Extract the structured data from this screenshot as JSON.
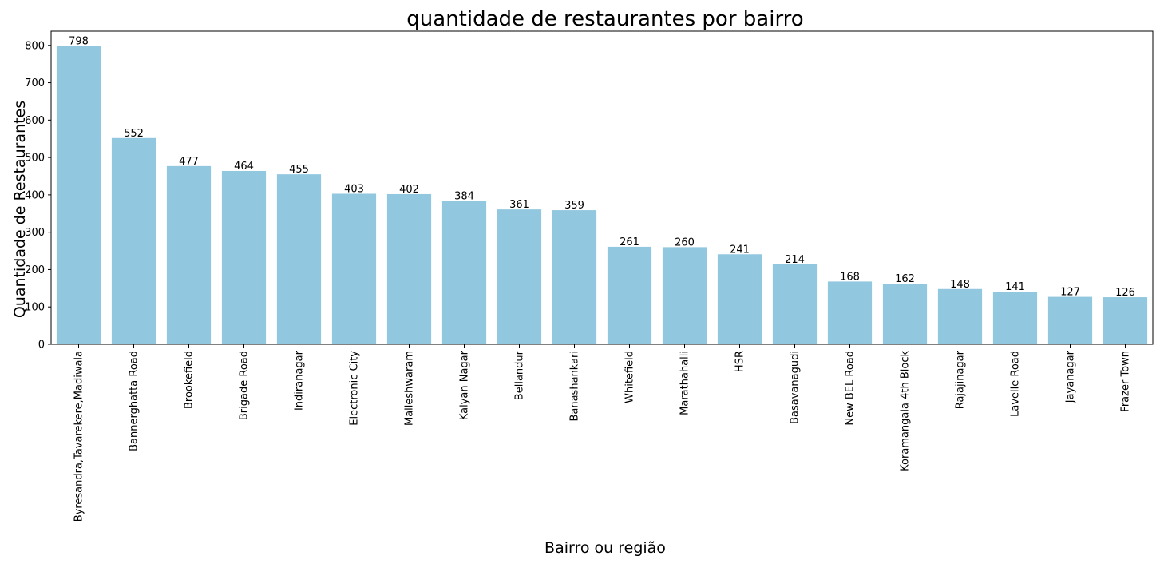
{
  "chart_data": {
    "type": "bar",
    "title": "quantidade de restaurantes por bairro",
    "xlabel": "Bairro ou região",
    "ylabel": "Quantidade de Restaurantes",
    "ylim": [
      0,
      838
    ],
    "yticks": [
      0,
      100,
      200,
      300,
      400,
      500,
      600,
      700,
      800
    ],
    "grid": false,
    "bar_color": "#92C8DF",
    "categories": [
      "Byresandra,Tavarekere,Madiwala",
      "Bannerghatta Road",
      "Brookefield",
      "Brigade Road",
      "Indiranagar",
      "Electronic City",
      "Malleshwaram",
      "Kalyan Nagar",
      "Bellandur",
      "Banashankari",
      "Whitefield",
      "Marathahalli",
      "HSR",
      "Basavanagudi",
      "New BEL Road",
      "Koramangala 4th Block",
      "Rajajinagar",
      "Lavelle Road",
      "Jayanagar",
      "Frazer Town"
    ],
    "values": [
      798,
      552,
      477,
      464,
      455,
      403,
      402,
      384,
      361,
      359,
      261,
      260,
      241,
      214,
      168,
      162,
      148,
      141,
      127,
      126
    ]
  }
}
